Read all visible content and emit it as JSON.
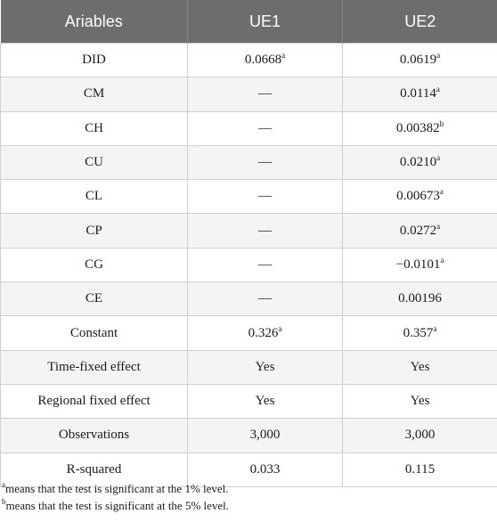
{
  "table": {
    "headers": [
      "Ariables",
      "UE1",
      "UE2"
    ],
    "rows": [
      {
        "label": "DID",
        "ue1": "0.0668",
        "ue1_sup": "a",
        "ue2": "0.0619",
        "ue2_sup": "a"
      },
      {
        "label": "CM",
        "ue1": "—",
        "ue1_sup": "",
        "ue2": "0.0114",
        "ue2_sup": "a"
      },
      {
        "label": "CH",
        "ue1": "—",
        "ue1_sup": "",
        "ue2": "0.00382",
        "ue2_sup": "b"
      },
      {
        "label": "CU",
        "ue1": "—",
        "ue1_sup": "",
        "ue2": "0.0210",
        "ue2_sup": "a"
      },
      {
        "label": "CL",
        "ue1": "—",
        "ue1_sup": "",
        "ue2": "0.00673",
        "ue2_sup": "a"
      },
      {
        "label": "CP",
        "ue1": "—",
        "ue1_sup": "",
        "ue2": "0.0272",
        "ue2_sup": "a"
      },
      {
        "label": "CG",
        "ue1": "—",
        "ue1_sup": "",
        "ue2": "−0.0101",
        "ue2_sup": "a"
      },
      {
        "label": "CE",
        "ue1": "—",
        "ue1_sup": "",
        "ue2": "0.00196",
        "ue2_sup": ""
      },
      {
        "label": "Constant",
        "ue1": "0.326",
        "ue1_sup": "a",
        "ue2": "0.357",
        "ue2_sup": "a"
      },
      {
        "label": "Time-fixed effect",
        "ue1": "Yes",
        "ue1_sup": "",
        "ue2": "Yes",
        "ue2_sup": ""
      },
      {
        "label": "Regional fixed effect",
        "ue1": "Yes",
        "ue1_sup": "",
        "ue2": "Yes",
        "ue2_sup": ""
      },
      {
        "label": "Observations",
        "ue1": "3,000",
        "ue1_sup": "",
        "ue2": "3,000",
        "ue2_sup": ""
      },
      {
        "label": "R-squared",
        "ue1": "0.033",
        "ue1_sup": "",
        "ue2": "0.115",
        "ue2_sup": ""
      }
    ]
  },
  "footnotes": [
    {
      "mark": "a",
      "text": "means that the test is significant at the 1% level."
    },
    {
      "mark": "b",
      "text": "means that the test is significant at the 5% level."
    }
  ]
}
